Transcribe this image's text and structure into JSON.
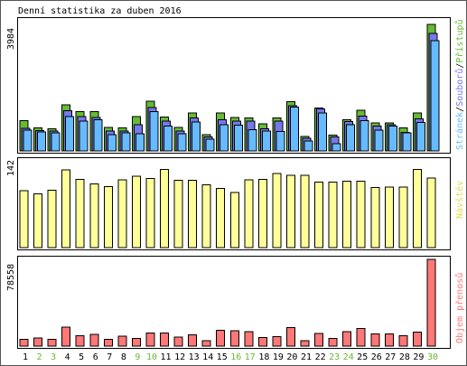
{
  "title": "Denní statistika za duben 2016",
  "colors": {
    "hits": "#66bb33",
    "files": "#7777ee",
    "pages": "#66bbff",
    "visits": "#ffff99",
    "volume": "#ff7777",
    "weekend": "#66bb33",
    "weekday": "#000000"
  },
  "weekend_days": [
    2,
    3,
    9,
    10,
    16,
    17,
    23,
    24,
    30
  ],
  "chart_data": [
    {
      "type": "bar",
      "title": "",
      "categories": [
        "1",
        "2",
        "3",
        "4",
        "5",
        "6",
        "7",
        "8",
        "9",
        "10",
        "11",
        "12",
        "13",
        "14",
        "15",
        "16",
        "17",
        "18",
        "19",
        "20",
        "21",
        "22",
        "23",
        "24",
        "25",
        "26",
        "27",
        "28",
        "29",
        "30"
      ],
      "max_label": "3984",
      "ylim": [
        0,
        3984
      ],
      "legend": [
        "Stránek",
        "Souborů",
        "Přístupů"
      ],
      "legend_separator": "/",
      "series": [
        {
          "name": "Přístupů",
          "values": [
            920,
            700,
            680,
            1400,
            1200,
            1200,
            720,
            700,
            1050,
            1510,
            1030,
            720,
            1150,
            500,
            1150,
            1020,
            1000,
            820,
            1000,
            1500,
            440,
            1300,
            480,
            950,
            1230,
            850,
            850,
            700,
            1150,
            3850
          ]
        },
        {
          "name": "Souborů",
          "values": [
            690,
            620,
            600,
            1220,
            1050,
            1020,
            600,
            600,
            800,
            1320,
            900,
            600,
            1000,
            420,
            950,
            900,
            900,
            680,
            900,
            1370,
            380,
            1280,
            430,
            890,
            1060,
            750,
            800,
            560,
            970,
            3570
          ]
        },
        {
          "name": "Stránek",
          "values": [
            630,
            580,
            550,
            1050,
            900,
            950,
            500,
            550,
            520,
            1200,
            760,
            520,
            880,
            360,
            800,
            780,
            650,
            600,
            590,
            1330,
            300,
            1160,
            220,
            800,
            920,
            630,
            750,
            550,
            860,
            3350
          ]
        }
      ]
    },
    {
      "type": "bar",
      "title": "",
      "categories": [
        "1",
        "2",
        "3",
        "4",
        "5",
        "6",
        "7",
        "8",
        "9",
        "10",
        "11",
        "12",
        "13",
        "14",
        "15",
        "16",
        "17",
        "18",
        "19",
        "20",
        "21",
        "22",
        "23",
        "24",
        "25",
        "26",
        "27",
        "28",
        "29",
        "30"
      ],
      "max_label": "142",
      "ylim": [
        0,
        142
      ],
      "legend": [
        "Návštěv"
      ],
      "series": [
        {
          "name": "Návštěv",
          "values": [
            93,
            88,
            94,
            127,
            112,
            104,
            100,
            111,
            117,
            113,
            128,
            110,
            110,
            103,
            97,
            90,
            111,
            112,
            121,
            118,
            118,
            107,
            107,
            109,
            109,
            98,
            99,
            99,
            128,
            114
          ]
        }
      ]
    },
    {
      "type": "bar",
      "title": "",
      "categories": [
        "1",
        "2",
        "3",
        "4",
        "5",
        "6",
        "7",
        "8",
        "9",
        "10",
        "11",
        "12",
        "13",
        "14",
        "15",
        "16",
        "17",
        "18",
        "19",
        "20",
        "21",
        "22",
        "23",
        "24",
        "25",
        "26",
        "27",
        "28",
        "29",
        "30"
      ],
      "max_label": "78558",
      "ylim": [
        0,
        78558
      ],
      "legend": [
        "Objem přenosů"
      ],
      "series": [
        {
          "name": "Objem přenosů",
          "values": [
            6100,
            7300,
            6300,
            17200,
            9500,
            10800,
            6300,
            9100,
            7100,
            11800,
            11800,
            8100,
            10200,
            4800,
            14500,
            13800,
            12900,
            7800,
            8600,
            16900,
            4800,
            11500,
            6800,
            13200,
            15800,
            11200,
            11200,
            9600,
            12600,
            78558
          ]
        }
      ]
    }
  ]
}
